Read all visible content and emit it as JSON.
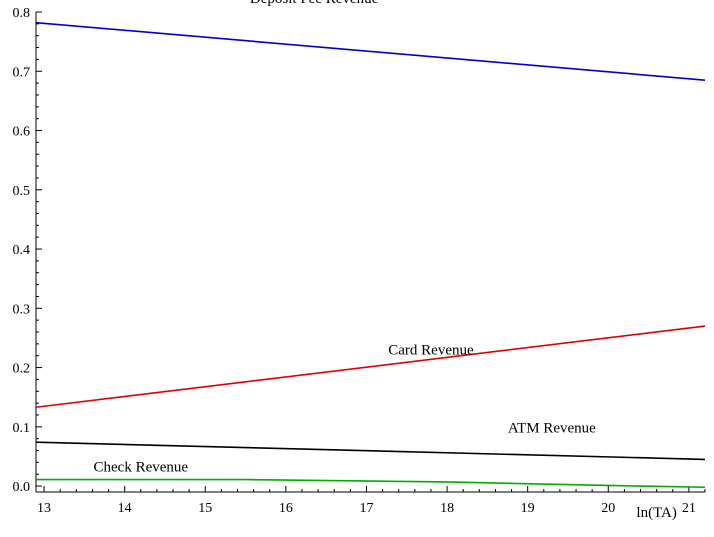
{
  "chart_data": {
    "type": "line",
    "title": "",
    "xlabel": "ln(TA)",
    "ylabel": "",
    "xlim": [
      12.9,
      21.2
    ],
    "ylim": [
      -0.01,
      0.8
    ],
    "xticks": [
      13,
      14,
      15,
      16,
      17,
      18,
      19,
      20,
      21
    ],
    "yticks": [
      "0.0",
      "0.1",
      "0.2",
      "0.3",
      "0.4",
      "0.5",
      "0.6",
      "0.7",
      "0.8"
    ],
    "grid": false,
    "legend": "none",
    "series": [
      {
        "name": "Deposit Fee Revenue",
        "color": "#0000cc",
        "x": [
          12.9,
          21.2
        ],
        "y": [
          0.782,
          0.685
        ]
      },
      {
        "name": "Card Revenue",
        "color": "#dd0000",
        "x": [
          12.9,
          21.2
        ],
        "y": [
          0.133,
          0.27
        ]
      },
      {
        "name": "ATM Revenue",
        "color": "#000000",
        "x": [
          12.9,
          21.2
        ],
        "y": [
          0.074,
          0.045
        ]
      },
      {
        "name": "Check Revenue",
        "color": "#00aa00",
        "x": [
          12.9,
          15.5,
          18.0,
          20.0,
          21.2
        ],
        "y": [
          0.011,
          0.011,
          0.007,
          0.001,
          -0.002
        ]
      }
    ]
  }
}
